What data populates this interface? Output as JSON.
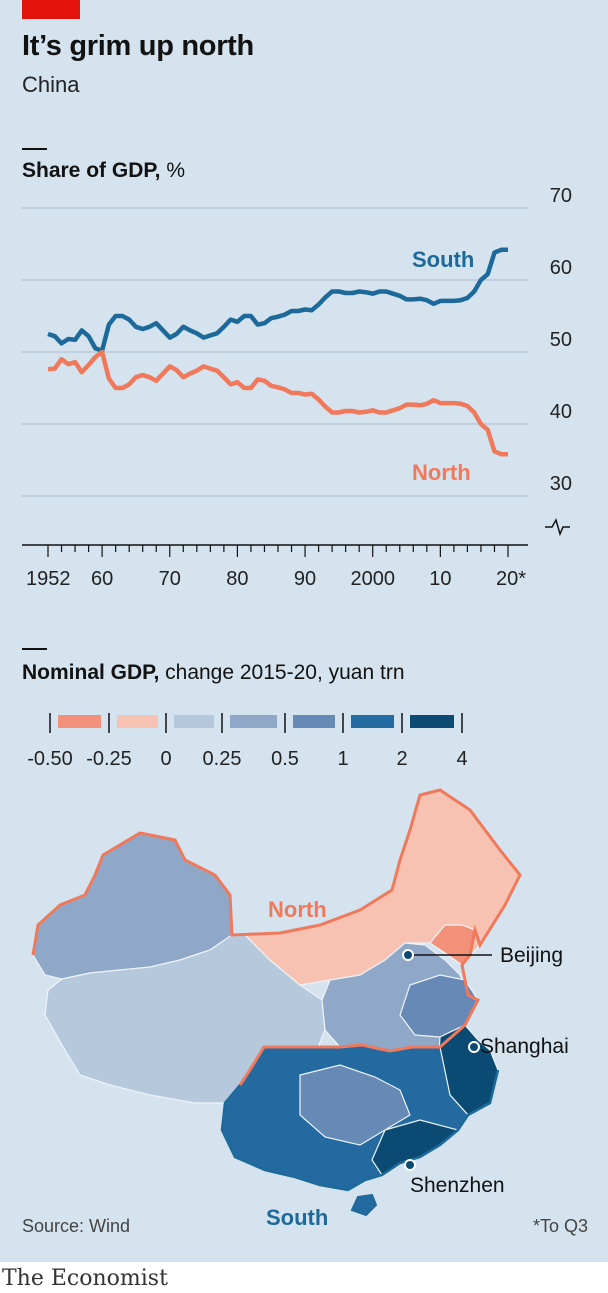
{
  "header": {
    "title": "It’s grim up north",
    "subtitle": "China"
  },
  "line_chart": {
    "heading_bold": "Share of GDP,",
    "heading_rest": " %"
  },
  "map_section": {
    "heading_bold": "Nominal GDP,",
    "heading_rest": " change 2015-20, yuan trn",
    "legend_colors": [
      "#f2907a",
      "#f7c2b1",
      "#b6c8dc",
      "#8fa8c8",
      "#6689b6",
      "#236aa0",
      "#0b4b73"
    ],
    "legend_labels": [
      "-0.50",
      "-0.25",
      "0",
      "0.25",
      "0.5",
      "1",
      "2",
      "4"
    ],
    "region_labels": {
      "north": "North",
      "south": "South"
    },
    "cities": [
      "Beijing",
      "Shanghai",
      "Shenzhen"
    ]
  },
  "footer": {
    "source": "Source: Wind",
    "footnote": "*To Q3",
    "brand": "The Economist"
  },
  "colors": {
    "south": "#1d6a9a",
    "north": "#f0795c",
    "accent_red": "#e3120b",
    "background": "#d4e3ee"
  },
  "chart_data": {
    "type": "line",
    "title": "Share of GDP, %",
    "ylim": [
      30,
      70
    ],
    "yticks": [
      30,
      40,
      50,
      60,
      70
    ],
    "y_axis_break": true,
    "xticks": [
      1952,
      1960,
      1970,
      1980,
      1990,
      2000,
      2010,
      2020
    ],
    "xtick_labels": [
      "1952",
      "60",
      "70",
      "80",
      "90",
      "2000",
      "10",
      "20*"
    ],
    "grid": true,
    "series": [
      {
        "name": "South",
        "x": [
          1952,
          1953,
          1954,
          1955,
          1956,
          1957,
          1958,
          1959,
          1960,
          1961,
          1962,
          1963,
          1964,
          1965,
          1966,
          1967,
          1968,
          1969,
          1970,
          1971,
          1972,
          1973,
          1974,
          1975,
          1976,
          1977,
          1978,
          1979,
          1980,
          1981,
          1982,
          1983,
          1984,
          1985,
          1986,
          1987,
          1988,
          1989,
          1990,
          1991,
          1992,
          1993,
          1994,
          1995,
          1996,
          1997,
          1998,
          1999,
          2000,
          2001,
          2002,
          2003,
          2004,
          2005,
          2006,
          2007,
          2008,
          2009,
          2010,
          2011,
          2012,
          2013,
          2014,
          2015,
          2016,
          2017,
          2018,
          2019,
          2020
        ],
        "values": [
          52.5,
          52.2,
          51.2,
          51.8,
          51.7,
          53.0,
          52.2,
          50.5,
          50.2,
          53.8,
          55.0,
          55.0,
          54.5,
          53.5,
          53.2,
          53.5,
          54.0,
          53.0,
          52.0,
          52.5,
          53.5,
          53.0,
          52.6,
          52.0,
          52.3,
          52.6,
          53.5,
          54.5,
          54.2,
          55.0,
          55.0,
          53.8,
          54.0,
          54.7,
          54.9,
          55.2,
          55.7,
          55.7,
          55.9,
          55.8,
          56.6,
          57.6,
          58.4,
          58.4,
          58.2,
          58.2,
          58.4,
          58.3,
          58.1,
          58.4,
          58.4,
          58.1,
          57.8,
          57.3,
          57.3,
          57.4,
          57.2,
          56.7,
          57.1,
          57.1,
          57.1,
          57.2,
          57.5,
          58.4,
          60.0,
          60.8,
          63.8,
          64.2,
          64.2
        ]
      },
      {
        "name": "North",
        "x": [
          1952,
          1953,
          1954,
          1955,
          1956,
          1957,
          1958,
          1959,
          1960,
          1961,
          1962,
          1963,
          1964,
          1965,
          1966,
          1967,
          1968,
          1969,
          1970,
          1971,
          1972,
          1973,
          1974,
          1975,
          1976,
          1977,
          1978,
          1979,
          1980,
          1981,
          1982,
          1983,
          1984,
          1985,
          1986,
          1987,
          1988,
          1989,
          1990,
          1991,
          1992,
          1993,
          1994,
          1995,
          1996,
          1997,
          1998,
          1999,
          2000,
          2001,
          2002,
          2003,
          2004,
          2005,
          2006,
          2007,
          2008,
          2009,
          2010,
          2011,
          2012,
          2013,
          2014,
          2015,
          2016,
          2017,
          2018,
          2019,
          2020
        ],
        "values": [
          47.6,
          47.7,
          49.0,
          48.3,
          48.6,
          47.2,
          48.2,
          49.3,
          50.0,
          46.3,
          45.0,
          45.0,
          45.5,
          46.5,
          46.8,
          46.5,
          46.0,
          47.0,
          48.0,
          47.5,
          46.5,
          47.0,
          47.4,
          48.0,
          47.7,
          47.4,
          46.5,
          45.5,
          45.8,
          45.0,
          45.0,
          46.2,
          46.0,
          45.3,
          45.1,
          44.8,
          44.3,
          44.3,
          44.1,
          44.2,
          43.4,
          42.4,
          41.6,
          41.6,
          41.8,
          41.8,
          41.6,
          41.7,
          41.9,
          41.6,
          41.6,
          41.9,
          42.2,
          42.7,
          42.7,
          42.6,
          42.8,
          43.3,
          42.9,
          42.9,
          42.9,
          42.8,
          42.5,
          41.6,
          40.0,
          39.2,
          36.2,
          35.8,
          35.8
        ]
      }
    ]
  }
}
